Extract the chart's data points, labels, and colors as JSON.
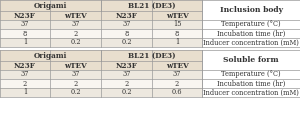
{
  "inclusion_body": {
    "header1": [
      "Origami",
      "BL21 (DE3)"
    ],
    "header2": [
      "N23F",
      "wTEV",
      "N23F",
      "wTEV"
    ],
    "rows": [
      [
        "37",
        "37",
        "37",
        "15",
        "Temperature (°C)"
      ],
      [
        "8",
        "2",
        "8",
        "8",
        "Incubation time (hr)"
      ],
      [
        "1",
        "0.2",
        "0.2",
        "1",
        "Inducer concentration (mM)"
      ]
    ],
    "section_label": "Inclusion body"
  },
  "soluble_form": {
    "header1": [
      "Origami",
      "BL21 (DE3)"
    ],
    "header2": [
      "N23F",
      "wTEV",
      "N23F",
      "wTEV"
    ],
    "rows": [
      [
        "37",
        "37",
        "37",
        "37",
        "Temperature (°C)"
      ],
      [
        "2",
        "2",
        "2",
        "2",
        "Incubation time (hr)"
      ],
      [
        "1",
        "0.2",
        "0.2",
        "0.6",
        "Inducer concentration (mM)"
      ]
    ],
    "section_label": "Soluble form"
  },
  "bg_header": "#e8dece",
  "bg_row_odd": "#ede8df",
  "bg_row_even": "#f8f5f0",
  "bg_white": "#ffffff",
  "text_color": "#333333",
  "line_color": "#999999",
  "font_size": 4.8,
  "header_font_size": 5.2,
  "label_font_size": 5.5,
  "fig_width": 3.0,
  "fig_height": 1.21
}
